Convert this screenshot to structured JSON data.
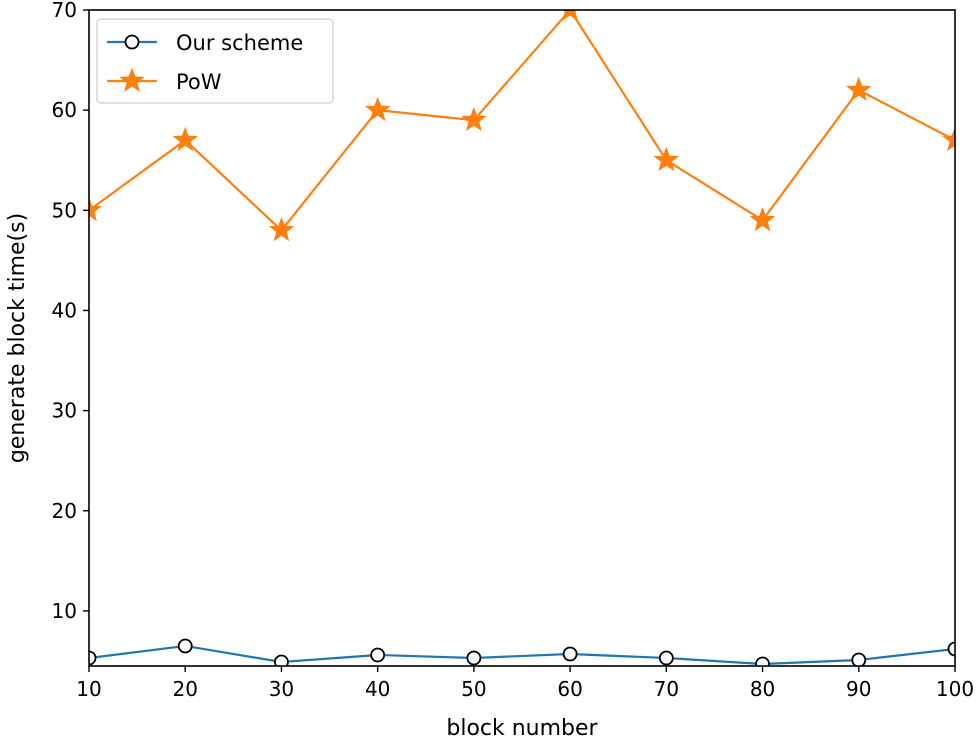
{
  "chart_data": {
    "type": "line",
    "title": "",
    "xlabel": "block number",
    "ylabel": "generate block time(s)",
    "xlim": [
      10,
      100
    ],
    "ylim": [
      4.5,
      70
    ],
    "xticks": [
      10,
      20,
      30,
      40,
      50,
      60,
      70,
      80,
      90,
      100
    ],
    "yticks": [
      10,
      20,
      30,
      40,
      50,
      60,
      70
    ],
    "grid": false,
    "legend_position": "top-left",
    "x": [
      10,
      20,
      30,
      40,
      50,
      60,
      70,
      80,
      90,
      100
    ],
    "series": [
      {
        "name": "Our scheme",
        "marker": "circle",
        "color": "#1f77b4",
        "values": [
          5.3,
          6.5,
          4.9,
          5.6,
          5.3,
          5.7,
          5.3,
          4.7,
          5.1,
          6.2
        ]
      },
      {
        "name": "PoW",
        "marker": "star",
        "color": "#ff7f0e",
        "values": [
          50,
          57,
          48,
          60,
          59,
          70,
          55,
          49,
          62,
          57
        ]
      }
    ]
  }
}
